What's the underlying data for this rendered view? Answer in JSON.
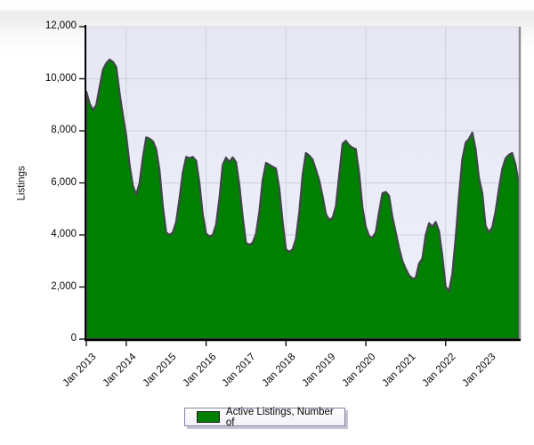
{
  "legend": {
    "label": "Active Listings, Number of",
    "swatch_color": "#008000"
  },
  "chart_data": {
    "type": "area",
    "title": "",
    "xlabel": "",
    "ylabel": "Listings",
    "ylim": [
      0,
      12000
    ],
    "grid": true,
    "legend_position": "bottom",
    "plot_bg_top": "#e7e7f4",
    "plot_bg_bottom": "#eef0fa",
    "grid_color": "#d1d1da",
    "axis_color": "#000000",
    "right_border_color": "#8f8f93",
    "ytick_values": [
      0,
      2000,
      4000,
      6000,
      8000,
      10000,
      12000
    ],
    "ytick_labels": [
      "0",
      "2,000",
      "4,000",
      "6,000",
      "8,000",
      "10,000",
      "12,000"
    ],
    "xtick_labels": [
      "Jan 2013",
      "Jan 2014",
      "Jan 2015",
      "Jan 2016",
      "Jan 2017",
      "Jan 2018",
      "Jan 2019",
      "Jan 2020",
      "Jan 2021",
      "Jan 2022",
      "Jan 2023"
    ],
    "xtick_month_indices": [
      0,
      12,
      24,
      36,
      48,
      60,
      72,
      84,
      96,
      108,
      120
    ],
    "axis_tick_month_indices": [
      0,
      12,
      36,
      60,
      84,
      108
    ],
    "grid_month_indices": [
      12,
      36,
      60,
      84,
      108
    ],
    "x_start": "Jan 2013",
    "x_step": "1 month",
    "series": [
      {
        "name": "Active Listings, Number of",
        "fill": "#008000",
        "stroke": "#42464a",
        "values": [
          9500,
          9050,
          8800,
          9000,
          9700,
          10350,
          10600,
          10740,
          10650,
          10450,
          9450,
          8600,
          7800,
          6700,
          5900,
          5550,
          6000,
          7000,
          7750,
          7700,
          7600,
          7300,
          6500,
          5100,
          4100,
          4000,
          4100,
          4500,
          5400,
          6400,
          7000,
          6950,
          7000,
          6850,
          6000,
          4800,
          4050,
          3950,
          4000,
          4400,
          5400,
          6700,
          6970,
          6810,
          6980,
          6800,
          5900,
          4700,
          3700,
          3620,
          3700,
          4050,
          4900,
          6100,
          6770,
          6700,
          6620,
          6550,
          5800,
          4500,
          3450,
          3350,
          3450,
          3850,
          4900,
          6300,
          7150,
          7050,
          6900,
          6500,
          6100,
          5500,
          4800,
          4580,
          4650,
          5100,
          6300,
          7500,
          7620,
          7450,
          7350,
          7300,
          6360,
          5060,
          4310,
          3950,
          3900,
          4100,
          4900,
          5600,
          5650,
          5500,
          4700,
          4100,
          3500,
          3000,
          2700,
          2450,
          2330,
          2350,
          2900,
          3100,
          4000,
          4450,
          4320,
          4500,
          4150,
          3200,
          2000,
          1850,
          2500,
          3900,
          5500,
          6900,
          7550,
          7690,
          7930,
          7300,
          6200,
          5620,
          4350,
          4100,
          4300,
          4900,
          5780,
          6530,
          6940,
          7080,
          7150,
          6700,
          5950
        ]
      }
    ]
  }
}
